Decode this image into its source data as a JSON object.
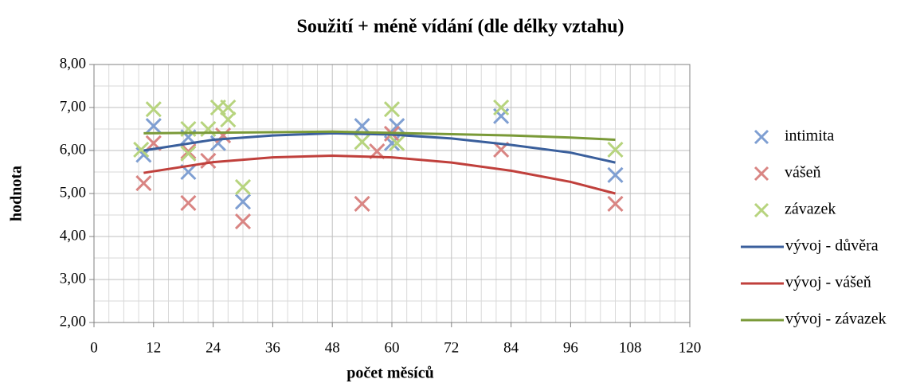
{
  "chart_data": {
    "type": "scatter",
    "title": "Soužití + méně vídání (dle délky vztahu)",
    "x_label": "počet měsíců",
    "y_label": "hodnota",
    "xlim": [
      0,
      120
    ],
    "xticks": [
      0,
      12,
      24,
      36,
      48,
      60,
      72,
      84,
      96,
      108,
      120
    ],
    "xminorticks": [
      3,
      6,
      9,
      15,
      18,
      21,
      27,
      30,
      33,
      39,
      42,
      45,
      51,
      54,
      57,
      63,
      66,
      69,
      75,
      78,
      81,
      87,
      90,
      93,
      99,
      102,
      105,
      111,
      114,
      117
    ],
    "ylim": [
      2,
      8
    ],
    "yticks": [
      {
        "value": 2,
        "label": "2,00"
      },
      {
        "value": 3,
        "label": "3,00"
      },
      {
        "value": 4,
        "label": "4,00"
      },
      {
        "value": 5,
        "label": "5,00"
      },
      {
        "value": 6,
        "label": "6,00"
      },
      {
        "value": 7,
        "label": "7,00"
      },
      {
        "value": 8,
        "label": "8,00"
      }
    ],
    "yminorticks": [
      2.5,
      3.5,
      4.5,
      5.5,
      6.5,
      7.5
    ],
    "grid": true,
    "legend": "right",
    "series": [
      {
        "name": "intimita",
        "style": "marker",
        "color": "#7f9fd2",
        "x": [
          10,
          12,
          19,
          19,
          25,
          30,
          54,
          60,
          61,
          82,
          105
        ],
        "values": [
          5.9,
          6.57,
          6.31,
          5.5,
          6.17,
          4.81,
          6.57,
          6.17,
          6.57,
          6.8,
          5.43
        ]
      },
      {
        "name": "vášeň",
        "style": "marker",
        "color": "#d98583",
        "x": [
          10,
          12,
          19,
          19,
          23,
          26,
          30,
          54,
          57,
          60,
          82,
          105
        ],
        "values": [
          5.24,
          6.17,
          4.78,
          5.98,
          5.76,
          6.35,
          4.35,
          4.76,
          5.98,
          6.39,
          6.02,
          4.76
        ]
      },
      {
        "name": "závazek",
        "style": "marker",
        "color": "#b7d47e",
        "x": [
          9.5,
          12,
          19,
          19,
          23,
          25,
          27,
          27,
          30,
          54,
          60,
          61,
          82,
          105
        ],
        "values": [
          6.02,
          6.96,
          6.5,
          5.93,
          6.5,
          7,
          7,
          6.72,
          5.15,
          6.2,
          6.96,
          6.17,
          7,
          6.02
        ]
      },
      {
        "name": "vývoj - důvěra",
        "style": "line",
        "color": "#3a5f9c",
        "x": [
          10,
          24,
          36,
          48,
          60,
          72,
          84,
          96,
          105
        ],
        "values": [
          6.0,
          6.25,
          6.35,
          6.4,
          6.37,
          6.28,
          6.13,
          5.95,
          5.72
        ]
      },
      {
        "name": "vývoj - vášeň",
        "style": "line",
        "color": "#c0403c",
        "x": [
          10,
          24,
          36,
          48,
          60,
          72,
          84,
          96,
          105
        ],
        "values": [
          5.48,
          5.73,
          5.84,
          5.88,
          5.84,
          5.72,
          5.53,
          5.27,
          5.0
        ]
      },
      {
        "name": "vývoj - závazek",
        "style": "line",
        "color": "#7a9a38",
        "x": [
          10,
          30,
          48,
          60,
          72,
          84,
          96,
          105
        ],
        "values": [
          6.4,
          6.42,
          6.44,
          6.41,
          6.38,
          6.35,
          6.3,
          6.25
        ]
      }
    ]
  }
}
